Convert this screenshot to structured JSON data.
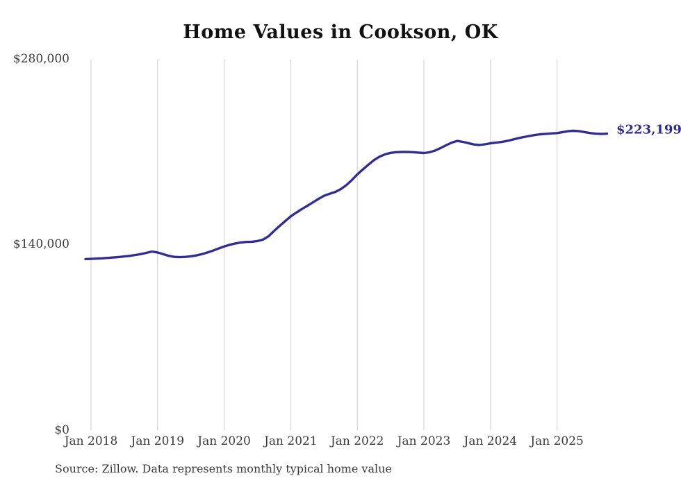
{
  "title": "Home Values in Cookson, OK",
  "source_note": "Source: Zillow. Data represents monthly typical home value",
  "colors": {
    "line": "#322e91",
    "end_label_text": "#2f2a8e",
    "gridline": "#cccccc",
    "axis_text": "#3b3b3b",
    "title_text": "#111111",
    "background": "#ffffff"
  },
  "chart_data": {
    "type": "line",
    "title": "Home Values in Cookson, OK",
    "xlabel": "",
    "ylabel": "",
    "ylim": [
      0,
      280000
    ],
    "grid": "vertical gridlines only",
    "legend": "none (end-of-line value annotation)",
    "y_ticks": [
      {
        "label": "$280,000",
        "value": 280000
      },
      {
        "label": "$140,000",
        "value": 140000
      },
      {
        "label": "$0",
        "value": 0
      }
    ],
    "x_ticks": [
      "Jan 2018",
      "Jan 2019",
      "Jan 2020",
      "Jan 2021",
      "Jan 2022",
      "Jan 2023",
      "Jan 2024",
      "Jan 2025"
    ],
    "end_annotation": {
      "label": "$223,199",
      "value": 223199
    },
    "series": [
      {
        "name": "Monthly typical home value",
        "unit": "USD",
        "color": "#322e91",
        "months": [
          "2017-12",
          "2018-01",
          "2018-02",
          "2018-03",
          "2018-04",
          "2018-05",
          "2018-06",
          "2018-07",
          "2018-08",
          "2018-09",
          "2018-10",
          "2018-11",
          "2018-12",
          "2019-01",
          "2019-02",
          "2019-03",
          "2019-04",
          "2019-05",
          "2019-06",
          "2019-07",
          "2019-08",
          "2019-09",
          "2019-10",
          "2019-11",
          "2019-12",
          "2020-01",
          "2020-02",
          "2020-03",
          "2020-04",
          "2020-05",
          "2020-06",
          "2020-07",
          "2020-08",
          "2020-09",
          "2020-10",
          "2020-11",
          "2020-12",
          "2021-01",
          "2021-02",
          "2021-03",
          "2021-04",
          "2021-05",
          "2021-06",
          "2021-07",
          "2021-08",
          "2021-09",
          "2021-10",
          "2021-11",
          "2021-12",
          "2022-01",
          "2022-02",
          "2022-03",
          "2022-04",
          "2022-05",
          "2022-06",
          "2022-07",
          "2022-08",
          "2022-09",
          "2022-10",
          "2022-11",
          "2022-12",
          "2023-01",
          "2023-02",
          "2023-03",
          "2023-04",
          "2023-05",
          "2023-06",
          "2023-07",
          "2023-08",
          "2023-09",
          "2023-10",
          "2023-11",
          "2023-12",
          "2024-01",
          "2024-02",
          "2024-03",
          "2024-04",
          "2024-05",
          "2024-06",
          "2024-07",
          "2024-08",
          "2024-09",
          "2024-10",
          "2024-11",
          "2024-12",
          "2025-01",
          "2025-02",
          "2025-03",
          "2025-04",
          "2025-05",
          "2025-06",
          "2025-07",
          "2025-08",
          "2025-09",
          "2025-10"
        ],
        "values": [
          128800,
          129000,
          129200,
          129400,
          129700,
          130000,
          130400,
          130800,
          131300,
          131900,
          132600,
          133500,
          134500,
          133800,
          132600,
          131300,
          130500,
          130300,
          130500,
          130900,
          131600,
          132600,
          133800,
          135200,
          136800,
          138300,
          139600,
          140600,
          141300,
          141700,
          141900,
          142400,
          143500,
          146000,
          150000,
          153800,
          157400,
          161000,
          163800,
          166500,
          169000,
          171500,
          174100,
          176500,
          178000,
          179300,
          181500,
          184400,
          188200,
          192600,
          196300,
          199900,
          203300,
          205900,
          207700,
          208800,
          209300,
          209500,
          209500,
          209300,
          209000,
          208700,
          209200,
          210500,
          212400,
          214500,
          216500,
          217800,
          217100,
          216100,
          215100,
          214700,
          215200,
          216000,
          216500,
          217000,
          217800,
          218800,
          219800,
          220700,
          221500,
          222200,
          222800,
          223100,
          223400,
          223700,
          224400,
          225100,
          225400,
          225100,
          224400,
          223700,
          223200,
          223000,
          223199
        ]
      }
    ]
  }
}
